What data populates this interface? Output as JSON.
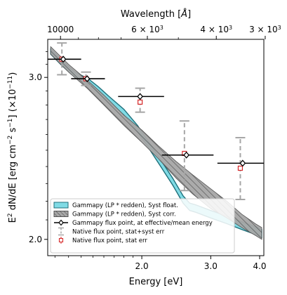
{
  "chart_data": {
    "type": "scatter",
    "title": "",
    "xlabel": "Energy [eV]",
    "ylabel": "E$^2$ dN/dE [erg cm$^{-2}$ s$^{-1}$]   ($\\times 10^{-11}$)",
    "ylabel_parts": {
      "main": "E",
      "sup1": "2",
      "mid1": " dN/dE [erg cm",
      "sup2": "−2",
      "mid2": " s",
      "sup3": "−1",
      "mid3": "]   (×10",
      "sup4": "−11",
      "end": ")"
    },
    "top_xlabel_parts": {
      "main": "Wavelength [",
      "unit": "Å",
      "end": "]"
    },
    "x_scale": "log",
    "y_scale": "log",
    "xlim": [
      1.15,
      4.1
    ],
    "ylim": [
      1.92,
      3.3
    ],
    "x_ticks": [
      2.0,
      3.0,
      4.0
    ],
    "x_tick_labels": [
      "2.0",
      "3.0",
      "4.0"
    ],
    "y_ticks": [
      2.0,
      3.0
    ],
    "y_tick_labels": [
      "2.0",
      "3.0"
    ],
    "top_axis": {
      "label": "Wavelength [Å]",
      "ticks": [
        10000,
        6000,
        4000,
        3000
      ],
      "tick_labels": [
        {
          "text": "10000",
          "base": "10000",
          "exp": ""
        },
        {
          "text": "6 × 10^3",
          "base": "6 × 10",
          "exp": "3"
        },
        {
          "text": "4 × 10^3",
          "base": "4 × 10",
          "exp": "3"
        },
        {
          "text": "3 × 10^3",
          "base": "3 × 10",
          "exp": "3"
        }
      ]
    },
    "series": [
      {
        "name": "Gammapy (LP * redden), Syst float.",
        "kind": "band",
        "color": "#17becf",
        "edge_color": "#1f6f7a",
        "x": [
          1.17,
          1.25,
          1.35,
          1.46,
          1.55,
          1.65,
          1.8,
          1.95,
          2.1,
          2.25,
          2.4,
          2.55,
          2.65,
          2.75,
          3.0,
          3.3,
          3.6,
          3.9,
          4.05
        ],
        "y_low": [
          3.18,
          3.09,
          3.0,
          2.95,
          2.89,
          2.82,
          2.73,
          2.62,
          2.5,
          2.39,
          2.29,
          2.19,
          2.15,
          2.14,
          2.11,
          2.08,
          2.05,
          2.025,
          2.01
        ],
        "y_high": [
          3.22,
          3.13,
          3.04,
          2.99,
          2.93,
          2.86,
          2.77,
          2.66,
          2.54,
          2.43,
          2.33,
          2.23,
          2.19,
          2.18,
          2.15,
          2.12,
          2.09,
          2.065,
          2.05
        ]
      },
      {
        "name": "Gammapy (LP * redden), Syst corr.",
        "kind": "band",
        "color": "#a6a6a6",
        "edge_color": "#555555",
        "hatch": true,
        "x": [
          1.17,
          1.3,
          1.45,
          1.6,
          1.8,
          2.0,
          2.2,
          2.45,
          2.7,
          3.0,
          3.3,
          3.6,
          3.9,
          4.05
        ],
        "y_low": [
          3.18,
          3.04,
          2.92,
          2.8,
          2.66,
          2.55,
          2.45,
          2.33,
          2.24,
          2.16,
          2.11,
          2.06,
          2.02,
          2.0
        ],
        "y_high": [
          3.24,
          3.1,
          2.98,
          2.87,
          2.73,
          2.63,
          2.53,
          2.43,
          2.35,
          2.27,
          2.2,
          2.13,
          2.08,
          2.06
        ]
      },
      {
        "name": "Gammapy flux point, at effective/mean energy",
        "kind": "points",
        "color": "#000000",
        "x": [
          1.26,
          1.45,
          1.98,
          2.6,
          3.62
        ],
        "xerr_lo": [
          1.14,
          1.32,
          1.74,
          2.25,
          3.12
        ],
        "xerr_hi": [
          1.4,
          1.61,
          2.28,
          3.05,
          4.1
        ],
        "y": [
          3.14,
          2.99,
          2.86,
          2.47,
          2.42
        ]
      },
      {
        "name": "Native flux point, stat+syst err",
        "kind": "errorbars",
        "color": "#a6a6a6",
        "x": [
          1.25,
          1.44,
          1.98,
          2.57,
          3.57
        ],
        "y": [
          3.14,
          2.99,
          2.84,
          2.47,
          2.39
        ],
        "yerr_lo": [
          3.02,
          2.94,
          2.75,
          2.26,
          2.21
        ],
        "yerr_hi": [
          3.27,
          3.04,
          2.92,
          2.69,
          2.58
        ]
      },
      {
        "name": "Native flux point, stat err",
        "kind": "points",
        "color": "#d62728",
        "x": [
          1.25,
          1.44,
          1.98,
          2.57,
          3.57
        ],
        "y": [
          3.14,
          2.99,
          2.82,
          2.48,
          2.39
        ],
        "yerr_lo": [
          3.13,
          2.98,
          2.81,
          2.47,
          2.38
        ],
        "yerr_hi": [
          3.15,
          3.0,
          2.83,
          2.49,
          2.4
        ]
      }
    ],
    "legend": "lower-left",
    "grid": false
  }
}
